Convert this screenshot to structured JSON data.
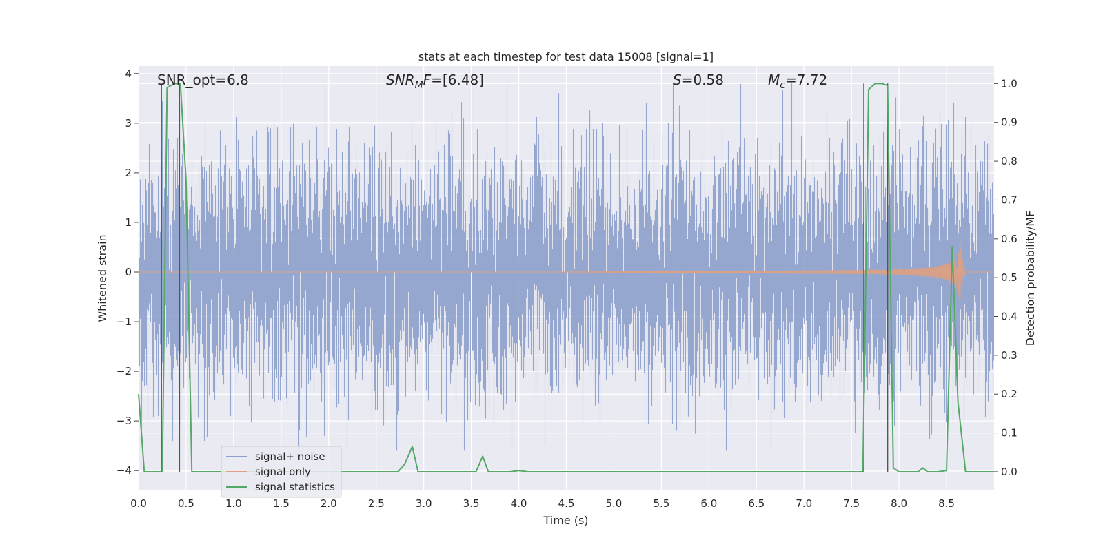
{
  "chart_data": {
    "type": "line",
    "title": "stats at each timestep for test data 15008 [signal=1]",
    "xlabel": "Time (s)",
    "ylabel": "Whitened strain",
    "y2label": "Detection probability/MF",
    "xlim": [
      0.0,
      9.0
    ],
    "ylim": [
      -4.4,
      4.15
    ],
    "y2lim": [
      -0.048,
      1.045
    ],
    "xticks": [
      0.0,
      0.5,
      1.0,
      1.5,
      2.0,
      2.5,
      3.0,
      3.5,
      4.0,
      4.5,
      5.0,
      5.5,
      6.0,
      6.5,
      7.0,
      7.5,
      8.0,
      8.5
    ],
    "xtick_labels": [
      "0.0",
      "0.5",
      "1.0",
      "1.5",
      "2.0",
      "2.5",
      "3.0",
      "3.5",
      "4.0",
      "4.5",
      "5.0",
      "5.5",
      "6.0",
      "6.5",
      "7.0",
      "7.5",
      "8.0",
      "8.5"
    ],
    "yticks": [
      -4,
      -3,
      -2,
      -1,
      0,
      1,
      2,
      3,
      4
    ],
    "ytick_labels": [
      "−4",
      "−3",
      "−2",
      "−1",
      "0",
      "1",
      "2",
      "3",
      "4"
    ],
    "y2ticks": [
      0.0,
      0.1,
      0.2,
      0.3,
      0.4,
      0.5,
      0.6,
      0.7,
      0.8,
      0.9,
      1.0
    ],
    "y2tick_labels": [
      "0.0",
      "0.1",
      "0.2",
      "0.3",
      "0.4",
      "0.5",
      "0.6",
      "0.7",
      "0.8",
      "0.9",
      "1.0"
    ],
    "annotations": [
      {
        "name": "snr-opt",
        "text": "SNR_opt=6.8",
        "x": 0.2
      },
      {
        "name": "snr-mf",
        "text": "SNR_MF=[6.48]",
        "x": 2.6
      },
      {
        "name": "s-value",
        "text": "S=0.58",
        "x": 5.6
      },
      {
        "name": "mc-value",
        "text": "M_c=7.72",
        "x": 6.6
      }
    ],
    "series": [
      {
        "name": "signal+ noise",
        "color": "#8da0cb",
        "kind": "noise",
        "amplitude_sigma": 1.0,
        "peak_range": [
          -3.6,
          3.8
        ],
        "t_range": [
          0.0,
          9.0
        ]
      },
      {
        "name": "signal only",
        "color": "#e0a080",
        "kind": "chirp",
        "t_start": 4.3,
        "t_merger": 8.65,
        "peak_amplitude": 0.85
      },
      {
        "name": "signal statistics",
        "color": "#55a868",
        "axis": "right",
        "x": [
          0.0,
          0.06,
          0.25,
          0.3,
          0.38,
          0.44,
          0.5,
          0.56,
          2.73,
          2.8,
          2.88,
          2.94,
          3.55,
          3.62,
          3.68,
          3.9,
          4.0,
          4.1,
          7.62,
          7.68,
          7.75,
          7.82,
          7.88,
          7.94,
          8.0,
          8.2,
          8.25,
          8.3,
          8.4,
          8.5,
          8.56,
          8.62,
          8.7,
          8.75,
          9.0
        ],
        "y": [
          0.2,
          0.0,
          0.0,
          0.99,
          1.0,
          1.0,
          0.75,
          0.0,
          0.0,
          0.02,
          0.065,
          0.0,
          0.0,
          0.04,
          0.0,
          0.0,
          0.003,
          0.0,
          0.0,
          0.985,
          1.0,
          1.0,
          0.995,
          0.01,
          0.0,
          0.0,
          0.01,
          0.0,
          0.0,
          0.003,
          0.58,
          0.18,
          0.0,
          0.0,
          0.0
        ]
      }
    ],
    "vlines": [
      {
        "x": 0.24,
        "y_top": 3.8
      },
      {
        "x": 0.43,
        "y_top": 3.8
      },
      {
        "x": 7.63,
        "y_top": 3.8
      },
      {
        "x": 7.88,
        "y_top": 3.8
      }
    ],
    "legend": {
      "position": "lower-left",
      "entries": [
        {
          "label": "signal+ noise",
          "color": "#8da0cb"
        },
        {
          "label": "signal only",
          "color": "#e0a080"
        },
        {
          "label": "signal statistics",
          "color": "#55a868"
        }
      ]
    }
  },
  "colors": {
    "plot_background": "#eaeaf2",
    "grid": "#ffffff",
    "vline": "#555555"
  }
}
